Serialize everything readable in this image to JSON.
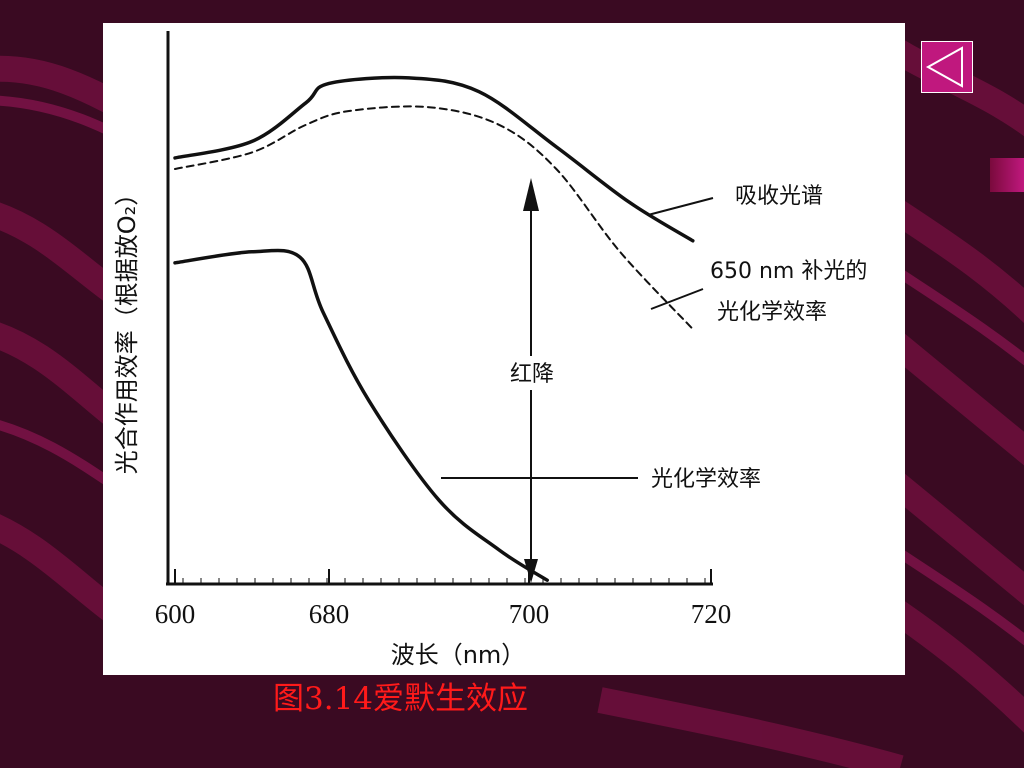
{
  "slide": {
    "caption": "图3.14爱默生效应",
    "nav": {
      "back_icon": "triangle-left-icon"
    },
    "colors": {
      "background": "#3a0a22",
      "accent": "#c0187e",
      "caption": "#ff1a1a"
    }
  },
  "chart_data": {
    "type": "line",
    "xlabel": "波长（nm）",
    "ylabel": "光合作用效率（根据放O₂）",
    "x_ticks": [
      "600",
      "680",
      "700",
      "720"
    ],
    "series": [
      {
        "name": "吸收光谱",
        "style": "solid",
        "points": [
          [
            600,
            0.77
          ],
          [
            640,
            0.8
          ],
          [
            668,
            0.87
          ],
          [
            680,
            0.905
          ],
          [
            688,
            0.915
          ],
          [
            695,
            0.89
          ],
          [
            703,
            0.79
          ],
          [
            711,
            0.69
          ],
          [
            718,
            0.62
          ]
        ]
      },
      {
        "name": "650 nm 补光的光化学效率",
        "style": "dashed",
        "points": [
          [
            600,
            0.75
          ],
          [
            640,
            0.78
          ],
          [
            668,
            0.83
          ],
          [
            682,
            0.855
          ],
          [
            690,
            0.862
          ],
          [
            697,
            0.83
          ],
          [
            703,
            0.75
          ],
          [
            710,
            0.6
          ],
          [
            718,
            0.46
          ]
        ]
      },
      {
        "name": "光化学效率",
        "style": "solid",
        "points": [
          [
            600,
            0.58
          ],
          [
            640,
            0.6
          ],
          [
            665,
            0.59
          ],
          [
            677,
            0.49
          ],
          [
            684,
            0.33
          ],
          [
            691,
            0.15
          ],
          [
            697,
            0.06
          ],
          [
            702,
            0.005
          ]
        ]
      }
    ],
    "annotations": [
      {
        "label": "吸收光谱"
      },
      {
        "label_lines": [
          "650 nm 补光的",
          "光化学效率"
        ]
      },
      {
        "label": "光化学效率"
      },
      {
        "label": "红降",
        "x": 703
      }
    ]
  }
}
